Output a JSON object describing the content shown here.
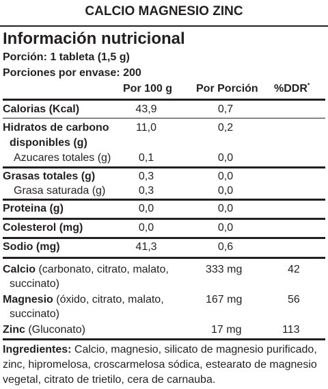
{
  "header": {
    "product_title": "CALCIO MAGNESIO ZINC"
  },
  "panel": {
    "heading": "Información nutricional",
    "serving_size": "Porción: 1 tableta (1,5 g)",
    "servings_per_container": "Porciones por envase: 200"
  },
  "columns": {
    "per_100g": "Por 100 g",
    "per_serving": "Por Porción",
    "ddr": "%DDR",
    "ddr_mark": "*"
  },
  "nutrients": {
    "calorias": {
      "label": "Calorias (Kcal)",
      "per_100g": "43,9",
      "per_serving": "0,7"
    },
    "hidratos": {
      "label_line1": "Hidratos de carbono",
      "label_line2": "disponibles (g)",
      "per_100g": "11,0",
      "per_serving": "0,2"
    },
    "azucares": {
      "label": "Azucares totales (g)",
      "per_100g": "0,1",
      "per_serving": "0,0"
    },
    "grasas": {
      "label": "Grasas totales (g)",
      "per_100g": "0,3",
      "per_serving": "0,0"
    },
    "grasa_saturada": {
      "label": "Grasa saturada (g)",
      "per_100g": "0,3",
      "per_serving": "0,0"
    },
    "proteina": {
      "label": "Proteina (g)",
      "per_100g": "0,0",
      "per_serving": "0,0"
    },
    "colesterol": {
      "label": "Colesterol (mg)",
      "per_100g": "0,0",
      "per_serving": "0,0"
    },
    "sodio": {
      "label": "Sodio (mg)",
      "per_100g": "41,3",
      "per_serving": "0,6"
    }
  },
  "minerals": {
    "calcio": {
      "name": "Calcio",
      "detail_line1": "(carbonato, citrato, malato,",
      "detail_line2": "succinato)",
      "amount": "333 mg",
      "ddr": "42"
    },
    "magnesio": {
      "name": "Magnesio",
      "detail_line1": "(óxido, citrato, malato,",
      "detail_line2": "succinato)",
      "amount": "167 mg",
      "ddr": "56"
    },
    "zinc": {
      "name": "Zinc",
      "detail": "(Gluconato)",
      "amount": "17 mg",
      "ddr": "113"
    }
  },
  "ingredients": {
    "label": "Ingredientes:",
    "line1": "Calcio, magnesio, silicato de magnesio purificado,",
    "line2": "zinc, hipromelosa, croscarmelosa sódica, estearato de magnesio",
    "line3": "vegetal, citrato de trietilo, cera de carnauba."
  }
}
